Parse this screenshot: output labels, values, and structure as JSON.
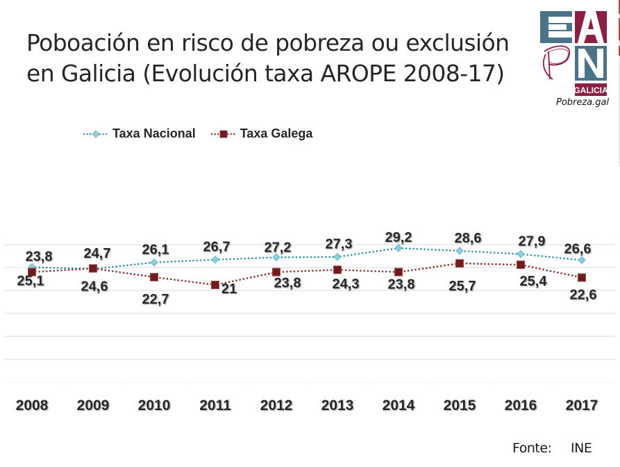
{
  "title_lines": [
    "Poboación en risco de pobreza ou exclusión",
    "en Galicia (Evolución taxa AROPE 2008-17)"
  ],
  "logo": {
    "letters": [
      "E",
      "A",
      "P",
      "N"
    ],
    "badge": "GALICIA",
    "caption": "Pobreza.gal",
    "colors": {
      "blue": "#4a7289",
      "wine": "#8b1e44"
    }
  },
  "source": {
    "label": "Fonte:",
    "value": "INE"
  },
  "chart_data": {
    "type": "line",
    "title": "Poboación en risco de pobreza ou exclusión en Galicia (Evolución taxa AROPE 2008-17)",
    "xlabel": "",
    "ylabel": "",
    "categories": [
      "2008",
      "2009",
      "2010",
      "2011",
      "2012",
      "2013",
      "2014",
      "2015",
      "2016",
      "2017"
    ],
    "series": [
      {
        "name": "Taxa Nacional",
        "values": [
          25.1,
          24.7,
          26.1,
          26.7,
          27.2,
          27.3,
          29.2,
          28.6,
          27.9,
          26.6
        ],
        "labels": [
          "25,1",
          "24,7",
          "26,1",
          "26,7",
          "27,2",
          "27,3",
          "29,2",
          "28,6",
          "27,9",
          "26,6"
        ],
        "color": "#2e8fa8",
        "marker": "diamond",
        "marker_color": "#8fcde0",
        "line_style": "dotted"
      },
      {
        "name": "Taxa Galega",
        "values": [
          23.8,
          24.6,
          22.7,
          21,
          23.8,
          24.3,
          23.8,
          25.7,
          25.4,
          22.6
        ],
        "labels": [
          "23,8",
          "24,6",
          "22,7",
          "21",
          "23,8",
          "24,3",
          "23,8",
          "25,7",
          "25,4",
          "22,6"
        ],
        "color": "#8b2a2a",
        "marker": "square",
        "marker_color": "#6e1c1c",
        "line_style": "dotted"
      }
    ],
    "grid": true,
    "axis_labels_visible": false,
    "legend": "top-left",
    "data_labels": true
  }
}
